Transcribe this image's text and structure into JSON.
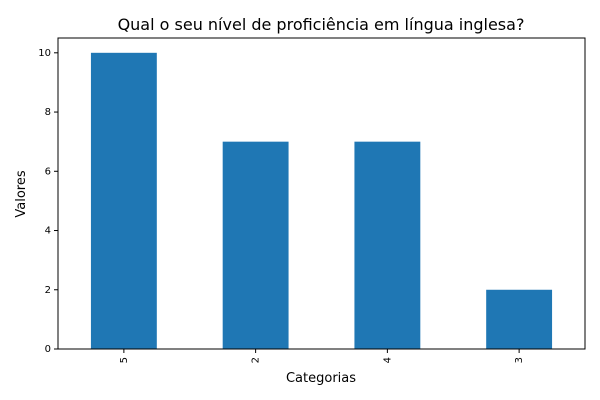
{
  "chart_data": {
    "type": "bar",
    "title": "Qual o seu nível de proficiência em língua inglesa?",
    "xlabel": "Categorias",
    "ylabel": "Valores",
    "categories": [
      "5",
      "2",
      "4",
      "3"
    ],
    "values": [
      10,
      7,
      7,
      2
    ],
    "ylim": [
      0,
      10.5
    ],
    "yticks": [
      0,
      2,
      4,
      6,
      8,
      10
    ],
    "grid": false,
    "legend": "none",
    "bar_color": "#1f77b4"
  }
}
